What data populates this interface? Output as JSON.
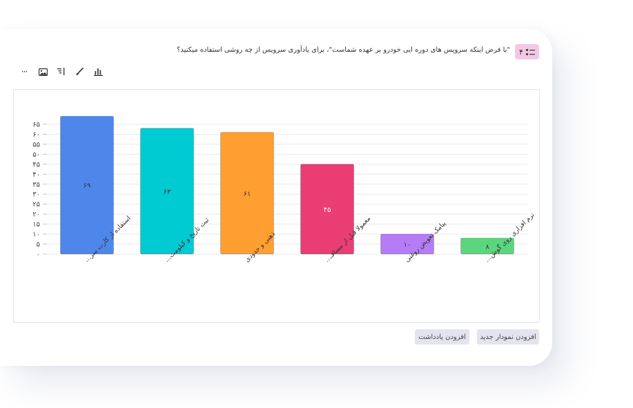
{
  "question": {
    "number": "۴",
    "text": "\"با فرض اینکه سرویس های دوره ایی خودرو بر عهده شماست\"، برای یادآوری سرویس از چه روشی استفاده میکنید؟"
  },
  "toolbar": {
    "icons": [
      "bar-chart-icon",
      "brush-icon",
      "sort-icon",
      "image-icon",
      "more-icon"
    ],
    "more_label": "···"
  },
  "colors": {
    "badge_bg": "#f4c7e5",
    "button_bg": "#e3e4ee",
    "bars": [
      "#4f86ea",
      "#00cad2",
      "#ff9f32",
      "#ea3d73",
      "#b57cf5",
      "#5cd67e"
    ]
  },
  "chart_data": {
    "type": "bar",
    "categories": [
      "استفاده از کارت سر...",
      "ثبت تاریخ و کیلومت...",
      "ذهنی و حدودی",
      "معمولا قبل از مسافـ...",
      "پیامک تعویض روغنی",
      "نرم افزاری روی گوش..."
    ],
    "values": [
      69,
      63,
      61,
      45,
      10,
      8
    ],
    "value_labels": [
      "۶۹",
      "۶۳",
      "۶۱",
      "۴۵",
      "۱۰",
      "۸"
    ],
    "yticks": [
      "۰",
      "۵",
      "۱۰",
      "۱۵",
      "۲۰",
      "۲۵",
      "۳۰",
      "۳۵",
      "۴۰",
      "۴۵",
      "۵۰",
      "۵۵",
      "۶۰",
      "۶۵"
    ],
    "ylim": [
      0,
      65
    ],
    "grid": true
  },
  "buttons": {
    "add_chart": "افزودن نمودار جدید",
    "add_note": "افزودن یادداشت"
  }
}
